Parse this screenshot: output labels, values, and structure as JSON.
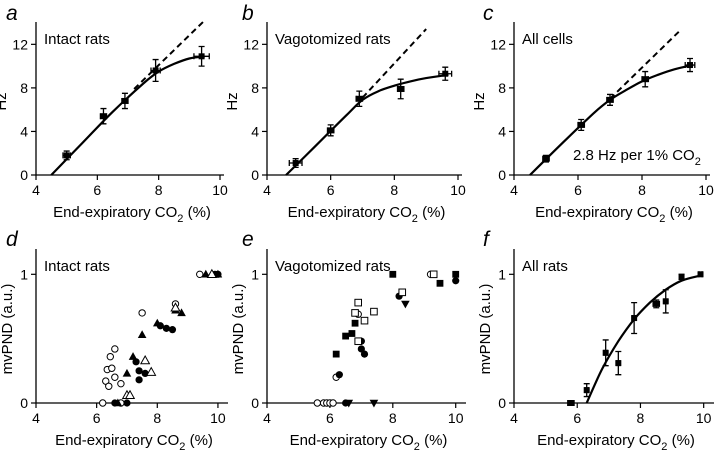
{
  "chart_data": [
    {
      "panel": "a",
      "type": "line",
      "title": "Intact rats",
      "xlabel": "End-expiratory CO2 (%)",
      "ylabel": "Hz",
      "xlim": [
        4,
        10
      ],
      "ylim": [
        0,
        13.5
      ],
      "xticks": [
        4,
        6,
        8,
        10
      ],
      "yticks": [
        0,
        4,
        8,
        12
      ],
      "points": [
        {
          "x": 5.0,
          "y": 1.8,
          "xerr": 0.12,
          "yerr": 0.4
        },
        {
          "x": 6.2,
          "y": 5.4,
          "xerr": 0.1,
          "yerr": 0.7
        },
        {
          "x": 6.9,
          "y": 6.8,
          "xerr": 0.1,
          "yerr": 0.7
        },
        {
          "x": 7.9,
          "y": 9.6,
          "xerr": 0.15,
          "yerr": 1.0
        },
        {
          "x": 9.4,
          "y": 10.9,
          "xerr": 0.25,
          "yerr": 0.9
        }
      ],
      "fit": [
        [
          4.5,
          0
        ],
        [
          5.5,
          2.9
        ],
        [
          6.5,
          5.8
        ],
        [
          7.5,
          8.4
        ],
        [
          8.0,
          9.5
        ],
        [
          8.5,
          10.2
        ],
        [
          9.0,
          10.7
        ],
        [
          9.5,
          10.9
        ]
      ],
      "linear": [
        [
          7.2,
          7.9
        ],
        [
          9.5,
          14.2
        ]
      ]
    },
    {
      "panel": "b",
      "type": "line",
      "title": "Vagotomized rats",
      "xlabel": "End-expiratory CO2 (%)",
      "ylabel": "Hz",
      "xlim": [
        4,
        10
      ],
      "ylim": [
        0,
        13.5
      ],
      "xticks": [
        4,
        6,
        8,
        10
      ],
      "yticks": [
        0,
        4,
        8,
        12
      ],
      "points": [
        {
          "x": 4.9,
          "y": 1.1,
          "xerr": 0.2,
          "yerr": 0.4
        },
        {
          "x": 6.0,
          "y": 4.1,
          "xerr": 0.1,
          "yerr": 0.5
        },
        {
          "x": 6.9,
          "y": 7.0,
          "xerr": 0.1,
          "yerr": 0.7
        },
        {
          "x": 8.2,
          "y": 7.9,
          "xerr": 0.1,
          "yerr": 0.9
        },
        {
          "x": 9.6,
          "y": 9.3,
          "xerr": 0.2,
          "yerr": 0.6
        }
      ],
      "fit": [
        [
          4.6,
          0
        ],
        [
          5.5,
          2.6
        ],
        [
          6.5,
          5.5
        ],
        [
          7.0,
          6.9
        ],
        [
          7.5,
          7.7
        ],
        [
          8.0,
          8.2
        ],
        [
          8.5,
          8.6
        ],
        [
          9.0,
          8.9
        ],
        [
          9.7,
          9.2
        ]
      ],
      "linear": [
        [
          7.0,
          7.1
        ],
        [
          9.0,
          13.4
        ]
      ]
    },
    {
      "panel": "c",
      "type": "line",
      "title": "All cells",
      "annotation": "2.8 Hz per 1% CO2",
      "xlabel": "End-expiratory CO2 (%)",
      "ylabel": "Hz",
      "xlim": [
        4,
        10
      ],
      "ylim": [
        0,
        13.5
      ],
      "xticks": [
        4,
        6,
        8,
        10
      ],
      "yticks": [
        0,
        4,
        8,
        12
      ],
      "points": [
        {
          "x": 5.0,
          "y": 1.5,
          "xerr": 0.1,
          "yerr": 0.3
        },
        {
          "x": 6.1,
          "y": 4.6,
          "xerr": 0.1,
          "yerr": 0.5
        },
        {
          "x": 7.0,
          "y": 6.9,
          "xerr": 0.1,
          "yerr": 0.5
        },
        {
          "x": 8.1,
          "y": 8.8,
          "xerr": 0.1,
          "yerr": 0.7
        },
        {
          "x": 9.5,
          "y": 10.1,
          "xerr": 0.15,
          "yerr": 0.6
        }
      ],
      "fit": [
        [
          4.5,
          0
        ],
        [
          5.5,
          2.9
        ],
        [
          6.5,
          5.7
        ],
        [
          7.0,
          6.9
        ],
        [
          7.5,
          7.8
        ],
        [
          8.0,
          8.6
        ],
        [
          8.5,
          9.2
        ],
        [
          9.0,
          9.7
        ],
        [
          9.6,
          10.1
        ]
      ],
      "linear": [
        [
          7.0,
          7.0
        ],
        [
          9.2,
          13.3
        ]
      ]
    },
    {
      "panel": "d",
      "type": "scatter",
      "title": "Intact rats",
      "xlabel": "End-expiratory CO2 (%)",
      "ylabel": "mvPND (a.u.)",
      "xlim": [
        4,
        10.2
      ],
      "ylim": [
        0,
        1.15
      ],
      "xticks": [
        4,
        6,
        8,
        10
      ],
      "yticks": [
        0,
        1
      ],
      "series": [
        {
          "marker": "open-circle",
          "points": [
            [
              6.2,
              0
            ],
            [
              6.3,
              0.17
            ],
            [
              6.35,
              0.26
            ],
            [
              6.4,
              0.13
            ],
            [
              6.45,
              0.36
            ],
            [
              6.5,
              0.27
            ],
            [
              6.6,
              0.42
            ],
            [
              6.6,
              0.2
            ],
            [
              6.8,
              0.15
            ],
            [
              6.8,
              0
            ],
            [
              7.5,
              0.7
            ],
            [
              8.6,
              0.77
            ],
            [
              9.4,
              1.0
            ]
          ]
        },
        {
          "marker": "filled-circle",
          "points": [
            [
              6.6,
              0
            ],
            [
              7.0,
              0
            ],
            [
              7.3,
              0.32
            ],
            [
              7.4,
              0.25
            ],
            [
              7.4,
              0.18
            ],
            [
              7.6,
              0.23
            ],
            [
              8.1,
              0.6
            ],
            [
              8.3,
              0.58
            ],
            [
              8.5,
              0.57
            ],
            [
              9.9,
              1.0
            ],
            [
              10.0,
              1.0
            ]
          ]
        },
        {
          "marker": "filled-triangle",
          "points": [
            [
              6.7,
              0
            ],
            [
              7.0,
              0.23
            ],
            [
              7.2,
              0.36
            ],
            [
              7.5,
              0.53
            ],
            [
              8.0,
              0.62
            ],
            [
              8.6,
              0.72
            ],
            [
              8.8,
              0.7
            ],
            [
              9.6,
              1.0
            ],
            [
              10.0,
              1.0
            ]
          ]
        },
        {
          "marker": "open-triangle",
          "points": [
            [
              7.0,
              0.06
            ],
            [
              7.1,
              0.06
            ],
            [
              7.6,
              0.33
            ],
            [
              7.8,
              0.24
            ],
            [
              8.6,
              0.74
            ],
            [
              9.8,
              1.0
            ]
          ]
        }
      ]
    },
    {
      "panel": "e",
      "type": "scatter",
      "title": "Vagotomized rats",
      "xlabel": "End-expiratory CO2 (%)",
      "ylabel": "mvPND (a.u.)",
      "xlim": [
        4,
        10.2
      ],
      "ylim": [
        0,
        1.15
      ],
      "xticks": [
        4,
        6,
        8,
        10
      ],
      "yticks": [
        0,
        1
      ],
      "series": [
        {
          "marker": "open-circle",
          "points": [
            [
              5.6,
              0
            ],
            [
              5.8,
              0
            ],
            [
              5.9,
              0
            ],
            [
              6.0,
              0
            ],
            [
              6.1,
              0
            ],
            [
              6.2,
              0.2
            ],
            [
              6.9,
              0.69
            ],
            [
              9.2,
              1.0
            ]
          ]
        },
        {
          "marker": "filled-circle",
          "points": [
            [
              6.3,
              0.22
            ],
            [
              6.5,
              0
            ],
            [
              7.0,
              0.42
            ],
            [
              7.0,
              0.48
            ],
            [
              7.1,
              0.38
            ],
            [
              7.4,
              0.71
            ],
            [
              8.2,
              0.83
            ],
            [
              10.0,
              0.95
            ]
          ]
        },
        {
          "marker": "open-square",
          "points": [
            [
              6.8,
              0.7
            ],
            [
              6.9,
              0.78
            ],
            [
              6.9,
              0.48
            ],
            [
              7.1,
              0.64
            ],
            [
              7.4,
              0.71
            ],
            [
              8.3,
              0.86
            ],
            [
              9.3,
              1.0
            ]
          ]
        },
        {
          "marker": "filled-square",
          "points": [
            [
              6.2,
              0.38
            ],
            [
              6.5,
              0.52
            ],
            [
              6.7,
              0.54
            ],
            [
              6.8,
              0.62
            ],
            [
              8.0,
              1.0
            ],
            [
              9.5,
              0.93
            ],
            [
              10.0,
              1.0
            ]
          ]
        },
        {
          "marker": "filled-triangle-down",
          "points": [
            [
              6.6,
              0
            ],
            [
              7.4,
              0
            ],
            [
              8.4,
              0.77
            ]
          ]
        }
      ]
    },
    {
      "panel": "f",
      "type": "line",
      "title": "All rats",
      "xlabel": "End-expiratory CO2 (%)",
      "ylabel": "mvPND (a.u.)",
      "xlim": [
        4,
        10.2
      ],
      "ylim": [
        0,
        1.15
      ],
      "xticks": [
        4,
        6,
        8,
        10
      ],
      "yticks": [
        0,
        1
      ],
      "points": [
        {
          "x": 5.8,
          "y": 0.0,
          "xerr": 0.1,
          "yerr": 0.0
        },
        {
          "x": 6.3,
          "y": 0.1,
          "xerr": 0.05,
          "yerr": 0.05
        },
        {
          "x": 6.9,
          "y": 0.39,
          "xerr": 0.05,
          "yerr": 0.1
        },
        {
          "x": 7.3,
          "y": 0.31,
          "xerr": 0.05,
          "yerr": 0.09
        },
        {
          "x": 7.8,
          "y": 0.66,
          "xerr": 0.05,
          "yerr": 0.12
        },
        {
          "x": 8.5,
          "y": 0.77,
          "xerr": 0.1,
          "yerr": 0.03
        },
        {
          "x": 8.8,
          "y": 0.79,
          "xerr": 0.05,
          "yerr": 0.09
        },
        {
          "x": 9.3,
          "y": 0.98,
          "xerr": 0.05,
          "yerr": 0.02
        },
        {
          "x": 9.9,
          "y": 1.0,
          "xerr": 0.05,
          "yerr": 0.0
        }
      ],
      "fit": [
        [
          6.3,
          0
        ],
        [
          6.8,
          0.27
        ],
        [
          7.3,
          0.48
        ],
        [
          7.8,
          0.65
        ],
        [
          8.3,
          0.78
        ],
        [
          8.8,
          0.88
        ],
        [
          9.3,
          0.95
        ],
        [
          9.9,
          0.99
        ]
      ]
    }
  ],
  "panel_letters": [
    "a",
    "b",
    "c",
    "d",
    "e",
    "f"
  ],
  "xlabel_text": "End-expiratory CO",
  "xlabel_sub": "2",
  "xlabel_unit": " (%)",
  "annotation_c": {
    "text": "2.8 Hz per 1% CO",
    "sub": "2"
  }
}
